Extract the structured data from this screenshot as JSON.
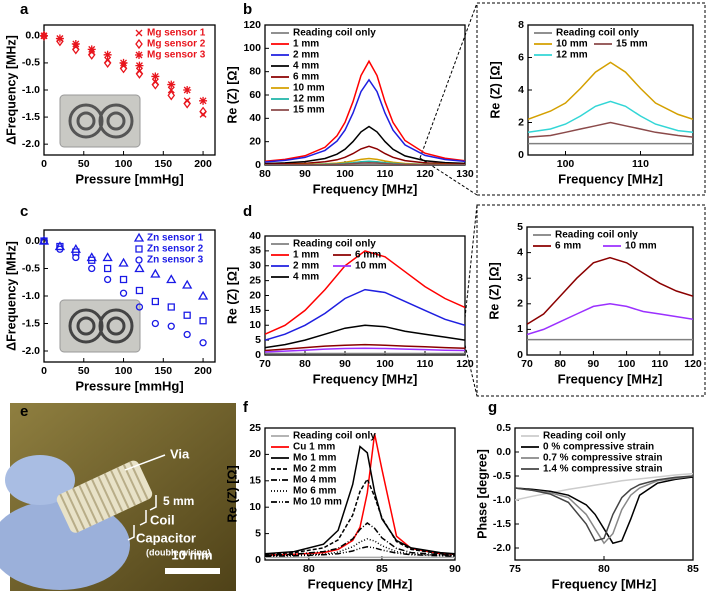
{
  "chart_data": [
    {
      "type": "scatter",
      "panel_label": "a",
      "xlabel": "Pressure [mmHg]",
      "ylabel": "ΔFrequency [MHz]",
      "xlim": [
        0,
        215
      ],
      "xticks": [
        0,
        50,
        100,
        150,
        200
      ],
      "ylim": [
        -2.2,
        0.2
      ],
      "yticks": [
        {
          "value": 0,
          "label": "0.0"
        },
        -0.5,
        {
          "value": -1,
          "label": "-1.0"
        },
        -1.5,
        {
          "value": -2,
          "label": "-2.0"
        }
      ],
      "legend": "upper right",
      "x": [
        0,
        20,
        40,
        60,
        80,
        100,
        120,
        140,
        160,
        180,
        200
      ],
      "series": [
        {
          "name": "Mg sensor 1",
          "color": "#e8141c",
          "marker": "x",
          "values": [
            0,
            -0.05,
            -0.2,
            -0.3,
            -0.45,
            -0.55,
            -0.65,
            -0.85,
            -1.0,
            -1.2,
            -1.45
          ]
        },
        {
          "name": "Mg sensor 2",
          "color": "#e8141c",
          "marker": "diamond",
          "values": [
            0,
            -0.1,
            -0.25,
            -0.35,
            -0.5,
            -0.6,
            -0.7,
            -0.9,
            -1.1,
            -1.25,
            -1.4
          ]
        },
        {
          "name": "Mg sensor 3",
          "color": "#e8141c",
          "marker": "asterisk",
          "values": [
            0,
            -0.05,
            -0.15,
            -0.25,
            -0.35,
            -0.5,
            -0.55,
            -0.75,
            -0.9,
            -1.0,
            -1.2
          ]
        }
      ]
    },
    {
      "type": "line",
      "panel_label": "b",
      "xlabel": "Frequency [MHz]",
      "ylabel": "Re (Z) [Ω]",
      "xlim": [
        80,
        130
      ],
      "xticks": [
        80,
        90,
        100,
        110,
        120,
        130
      ],
      "ylim": [
        0,
        120
      ],
      "yticks": [
        0,
        20,
        40,
        60,
        80,
        100,
        120
      ],
      "legend": "upper left",
      "x": [
        80,
        85,
        90,
        95,
        98,
        100,
        102,
        104,
        106,
        108,
        110,
        112,
        115,
        120,
        125,
        130
      ],
      "series": [
        {
          "name": "Reading coil only",
          "color": "#808080",
          "dash": "solid",
          "values": [
            0.5,
            0.5,
            0.5,
            0.5,
            0.5,
            0.5,
            0.5,
            0.5,
            0.5,
            0.5,
            0.5,
            0.5,
            0.5,
            0.5,
            0.5,
            0.5
          ]
        },
        {
          "name": "1 mm",
          "color": "#ff0000",
          "dash": "solid",
          "values": [
            3.2,
            4.8,
            7.9,
            15.2,
            25,
            36.5,
            54.3,
            76.7,
            89,
            76.7,
            54.3,
            36.5,
            21,
            10.1,
            5.8,
            3.7
          ]
        },
        {
          "name": "2 mm",
          "color": "#1f1fe0",
          "dash": "solid",
          "values": [
            2.6,
            3.9,
            6.5,
            12.5,
            20.5,
            29.9,
            44.5,
            62.9,
            73,
            62.9,
            44.5,
            29.9,
            17.2,
            8.2,
            4.7,
            3.1
          ]
        },
        {
          "name": "4 mm",
          "color": "#000000",
          "dash": "solid",
          "values": [
            1.2,
            1.8,
            2.9,
            5.6,
            9.3,
            13.5,
            20.1,
            28.4,
            33,
            28.4,
            20.1,
            13.5,
            7.8,
            3.7,
            2.1,
            1.4
          ]
        },
        {
          "name": "6 mm",
          "color": "#8b0000",
          "dash": "solid",
          "values": [
            0.6,
            0.9,
            1.4,
            2.7,
            4.5,
            6.6,
            9.8,
            13.8,
            16,
            13.8,
            9.8,
            6.6,
            3.8,
            1.8,
            1,
            0.7
          ]
        },
        {
          "name": "10 mm",
          "color": "#d4a000",
          "dash": "solid",
          "values": [
            0.2,
            0.3,
            0.5,
            1,
            1.6,
            2.3,
            3.4,
            4.8,
            5.6,
            4.8,
            3.4,
            2.3,
            1.3,
            0.6,
            0.4,
            0.2
          ]
        },
        {
          "name": "12 mm",
          "color": "#1fb5a8",
          "dash": "solid",
          "values": [
            0.1,
            0.2,
            0.3,
            0.6,
            0.9,
            1.4,
            2,
            2.8,
            3.3,
            2.8,
            2,
            1.4,
            0.8,
            0.4,
            0.2,
            0.1
          ]
        },
        {
          "name": "15 mm",
          "color": "#8b4a4a",
          "dash": "solid",
          "values": [
            0.1,
            0.1,
            0.2,
            0.3,
            0.6,
            0.8,
            1.2,
            1.7,
            2,
            1.7,
            1.2,
            0.8,
            0.5,
            0.2,
            0.1,
            0.1
          ]
        }
      ]
    },
    {
      "type": "line",
      "xlabel": "Frequency [MHz]",
      "ylabel": "Re (Z) [Ω]",
      "xlim": [
        95,
        117
      ],
      "xticks": [
        100,
        110
      ],
      "ylim": [
        0,
        8
      ],
      "yticks": [
        0,
        2,
        4,
        6,
        8
      ],
      "legend": "upper left",
      "x": [
        95,
        98,
        100,
        102,
        104,
        106,
        108,
        110,
        112,
        115,
        117
      ],
      "series": [
        {
          "name": "Reading coil only",
          "color": "#808080",
          "dash": "solid",
          "values": [
            0.7,
            0.7,
            0.7,
            0.7,
            0.7,
            0.7,
            0.7,
            0.7,
            0.7,
            0.7,
            0.7
          ]
        },
        {
          "name": "10 mm",
          "color": "#d4a000",
          "dash": "solid",
          "values": [
            2.2,
            2.7,
            3.2,
            4.1,
            5.1,
            5.7,
            5.1,
            4.1,
            3.2,
            2.5,
            2.2
          ]
        },
        {
          "name": "12 mm",
          "color": "#33d6d6",
          "dash": "solid",
          "values": [
            1.4,
            1.6,
            1.9,
            2.4,
            3.0,
            3.3,
            3.0,
            2.4,
            1.9,
            1.5,
            1.4
          ]
        },
        {
          "name": "15 mm",
          "color": "#8b4a4a",
          "dash": "solid",
          "values": [
            1.1,
            1.2,
            1.4,
            1.6,
            1.8,
            2.0,
            1.8,
            1.6,
            1.4,
            1.2,
            1.1
          ]
        }
      ]
    },
    {
      "type": "scatter",
      "panel_label": "c",
      "xlabel": "Pressure [mmHg]",
      "ylabel": "ΔFrequency [MHz]",
      "xlim": [
        0,
        215
      ],
      "xticks": [
        0,
        50,
        100,
        150,
        200
      ],
      "ylim": [
        -2.2,
        0.2
      ],
      "yticks": [
        {
          "value": 0,
          "label": "0.0"
        },
        -0.5,
        {
          "value": -1,
          "label": "-1.0"
        },
        -1.5,
        {
          "value": -2,
          "label": "-2.0"
        }
      ],
      "legend": "upper right",
      "x": [
        0,
        20,
        40,
        60,
        80,
        100,
        120,
        140,
        160,
        180,
        200
      ],
      "series": [
        {
          "name": "Zn sensor 1",
          "color": "#1a1ae6",
          "marker": "triangle",
          "values": [
            0,
            -0.1,
            -0.15,
            -0.3,
            -0.3,
            -0.4,
            -0.5,
            -0.6,
            -0.7,
            -0.8,
            -1.0
          ]
        },
        {
          "name": "Zn sensor 2",
          "color": "#1a1ae6",
          "marker": "square",
          "values": [
            0,
            -0.1,
            -0.2,
            -0.35,
            -0.5,
            -0.7,
            -0.9,
            -1.1,
            -1.2,
            -1.35,
            -1.45
          ]
        },
        {
          "name": "Zn sensor 3",
          "color": "#1a1ae6",
          "marker": "circle",
          "values": [
            0,
            -0.15,
            -0.3,
            -0.5,
            -0.7,
            -0.95,
            -1.2,
            -1.5,
            -1.55,
            -1.7,
            -1.85
          ]
        }
      ]
    },
    {
      "type": "line",
      "panel_label": "d",
      "xlabel": "Frequency [MHz]",
      "ylabel": "Re (Z) [Ω]",
      "xlim": [
        70,
        120
      ],
      "xticks": [
        70,
        80,
        90,
        100,
        110,
        120
      ],
      "ylim": [
        0,
        40
      ],
      "yticks": [
        0,
        5,
        10,
        15,
        20,
        25,
        30,
        35,
        40
      ],
      "legend": "upper left",
      "x": [
        70,
        75,
        80,
        85,
        90,
        95,
        100,
        105,
        110,
        115,
        120
      ],
      "series": [
        {
          "name": "Reading coil only",
          "color": "#808080",
          "dash": "solid",
          "values": [
            0.5,
            0.5,
            0.5,
            0.5,
            0.5,
            0.5,
            0.5,
            0.5,
            0.5,
            0.5,
            0.5
          ]
        },
        {
          "name": "1 mm",
          "color": "#ff0000",
          "dash": "solid",
          "values": [
            7,
            10,
            15,
            22,
            30,
            35,
            33,
            28,
            23,
            19,
            16
          ]
        },
        {
          "name": "2 mm",
          "color": "#1f1fe0",
          "dash": "solid",
          "values": [
            5,
            7,
            10,
            14,
            19,
            22,
            21,
            18,
            15,
            12,
            10
          ]
        },
        {
          "name": "4 mm",
          "color": "#000000",
          "dash": "solid",
          "values": [
            2.5,
            3.5,
            5,
            7,
            9,
            10,
            9.5,
            8,
            7,
            6,
            5
          ]
        },
        {
          "name": "6 mm",
          "color": "#8b0000",
          "dash": "solid",
          "values": [
            1.5,
            2,
            2.5,
            3,
            3.3,
            3.5,
            3.3,
            3,
            2.8,
            2.5,
            2.3
          ]
        },
        {
          "name": "10 mm",
          "color": "#9b30ff",
          "dash": "solid",
          "values": [
            1,
            1.3,
            1.6,
            2,
            2.2,
            2.3,
            2.2,
            2,
            1.8,
            1.6,
            1.5
          ]
        }
      ]
    },
    {
      "type": "line",
      "xlabel": "Frequency [MHz]",
      "ylabel": "Re (Z) [Ω]",
      "xlim": [
        70,
        120
      ],
      "xticks": [
        70,
        80,
        90,
        100,
        110,
        120
      ],
      "ylim": [
        0,
        5
      ],
      "yticks": [
        0,
        1,
        2,
        3,
        4,
        5
      ],
      "legend": "upper left",
      "x": [
        70,
        75,
        80,
        85,
        90,
        95,
        100,
        105,
        110,
        115,
        120
      ],
      "series": [
        {
          "name": "Reading coil only",
          "color": "#808080",
          "dash": "solid",
          "values": [
            0.6,
            0.6,
            0.6,
            0.6,
            0.6,
            0.6,
            0.6,
            0.6,
            0.6,
            0.6,
            0.6
          ]
        },
        {
          "name": "6 mm",
          "color": "#8b0000",
          "dash": "solid",
          "values": [
            1.2,
            1.6,
            2.3,
            3.0,
            3.6,
            3.8,
            3.6,
            3.2,
            2.8,
            2.5,
            2.3
          ]
        },
        {
          "name": "10 mm",
          "color": "#9b30ff",
          "dash": "solid",
          "values": [
            0.8,
            1.0,
            1.3,
            1.6,
            1.9,
            2.0,
            1.9,
            1.7,
            1.6,
            1.5,
            1.4
          ]
        }
      ]
    },
    {
      "type": "line",
      "panel_label": "f",
      "xlabel": "Frequency [MHz]",
      "ylabel": "Re (Z) [Ω]",
      "xlim": [
        77,
        90
      ],
      "xticks": [
        80,
        85,
        90
      ],
      "ylim": [
        0,
        25
      ],
      "yticks": [
        0,
        5,
        10,
        15,
        20,
        25
      ],
      "legend": "upper left",
      "x": [
        77,
        79,
        81,
        82,
        83,
        83.5,
        84,
        84.5,
        85,
        86,
        87,
        89,
        90
      ],
      "series": [
        {
          "name": "Reading coil only",
          "color": "#aaaaaa",
          "dash": "solid",
          "values": [
            0.5,
            0.5,
            0.5,
            0.5,
            0.5,
            0.5,
            0.5,
            0.5,
            0.5,
            0.5,
            0.5,
            0.5,
            0.5
          ]
        },
        {
          "name": "Cu 1 mm",
          "color": "#ff0000",
          "dash": "solid",
          "values": [
            0.9,
            1.1,
            1.4,
            2.0,
            3.7,
            6.2,
            12.7,
            23.9,
            17.2,
            4.5,
            2.2,
            1.2,
            1.1
          ]
        },
        {
          "name": "Mo 1 mm",
          "color": "#000000",
          "dash": "solid",
          "values": [
            1.2,
            1.6,
            3.0,
            5.6,
            14.3,
            21.5,
            20.3,
            12.9,
            7.8,
            3.7,
            2.3,
            1.4,
            1.2
          ]
        },
        {
          "name": "Mo 2 mm",
          "color": "#000000",
          "dash": "dashed",
          "values": [
            1.1,
            1.4,
            2.3,
            3.8,
            8.5,
            13,
            15.3,
            12,
            8,
            3.5,
            2,
            1.2,
            1.1
          ]
        },
        {
          "name": "Mo 4 mm",
          "color": "#000000",
          "dash": "dashdot",
          "values": [
            0.9,
            1.1,
            1.6,
            2.2,
            4,
            5.8,
            7,
            6,
            4.2,
            2.2,
            1.4,
            1,
            0.9
          ]
        },
        {
          "name": "Mo 6 mm",
          "color": "#000000",
          "dash": "dotted",
          "values": [
            0.8,
            0.9,
            1.1,
            1.5,
            2.5,
            3.4,
            4,
            3.6,
            2.7,
            1.6,
            1.1,
            0.9,
            0.8
          ]
        },
        {
          "name": "Mo 10 mm",
          "color": "#000000",
          "dash": "dashdotdot",
          "values": [
            0.7,
            0.8,
            1,
            1.2,
            1.7,
            2.2,
            2.5,
            2.3,
            1.9,
            1.3,
            1,
            0.8,
            0.7
          ]
        }
      ]
    },
    {
      "type": "line",
      "panel_label": "g",
      "xlabel": "Frequency [MHz]",
      "ylabel": "Phase [degree]",
      "xlim": [
        75,
        85
      ],
      "xticks": [
        75,
        80,
        85
      ],
      "ylim": [
        -2.25,
        0.5
      ],
      "yticks": [
        0.5,
        {
          "value": 0,
          "label": "0.0"
        },
        -0.5,
        {
          "value": -1,
          "label": "-1.0"
        },
        -1.5,
        {
          "value": -2,
          "label": "-2.0"
        }
      ],
      "legend": "upper left",
      "x": [
        75,
        76,
        77,
        78,
        79,
        79.5,
        80,
        80.5,
        81,
        81.5,
        82,
        83,
        84,
        85
      ],
      "series": [
        {
          "name": "Reading coil only",
          "color": "#cccccc",
          "dash": "solid",
          "values": [
            -1.0,
            -0.92,
            -0.85,
            -0.78,
            -0.72,
            -0.69,
            -0.66,
            -0.63,
            -0.6,
            -0.58,
            -0.56,
            -0.52,
            -0.48,
            -0.45
          ]
        },
        {
          "name": "0 % compressive strain",
          "color": "#000000",
          "dash": "solid",
          "values": [
            -0.75,
            -0.78,
            -0.82,
            -0.9,
            -1.1,
            -1.3,
            -1.6,
            -1.9,
            -1.85,
            -1.4,
            -0.9,
            -0.65,
            -0.57,
            -0.52
          ]
        },
        {
          "name": "0.7 % compressive strain",
          "color": "#888888",
          "dash": "solid",
          "values": [
            -0.75,
            -0.8,
            -0.85,
            -0.95,
            -1.3,
            -1.6,
            -1.9,
            -1.7,
            -1.2,
            -0.9,
            -0.75,
            -0.6,
            -0.55,
            -0.5
          ]
        },
        {
          "name": "1.4 % compressive strain",
          "color": "#444444",
          "dash": "solid",
          "values": [
            -0.75,
            -0.8,
            -0.88,
            -1.05,
            -1.5,
            -1.85,
            -1.8,
            -1.3,
            -0.95,
            -0.78,
            -0.68,
            -0.58,
            -0.53,
            -0.5
          ]
        }
      ]
    }
  ],
  "photo": {
    "panel_label": "e",
    "annotations": [
      "Via",
      "5 mm",
      "Coil",
      "Capacitor",
      "(double wiring)",
      "10 mm"
    ]
  }
}
